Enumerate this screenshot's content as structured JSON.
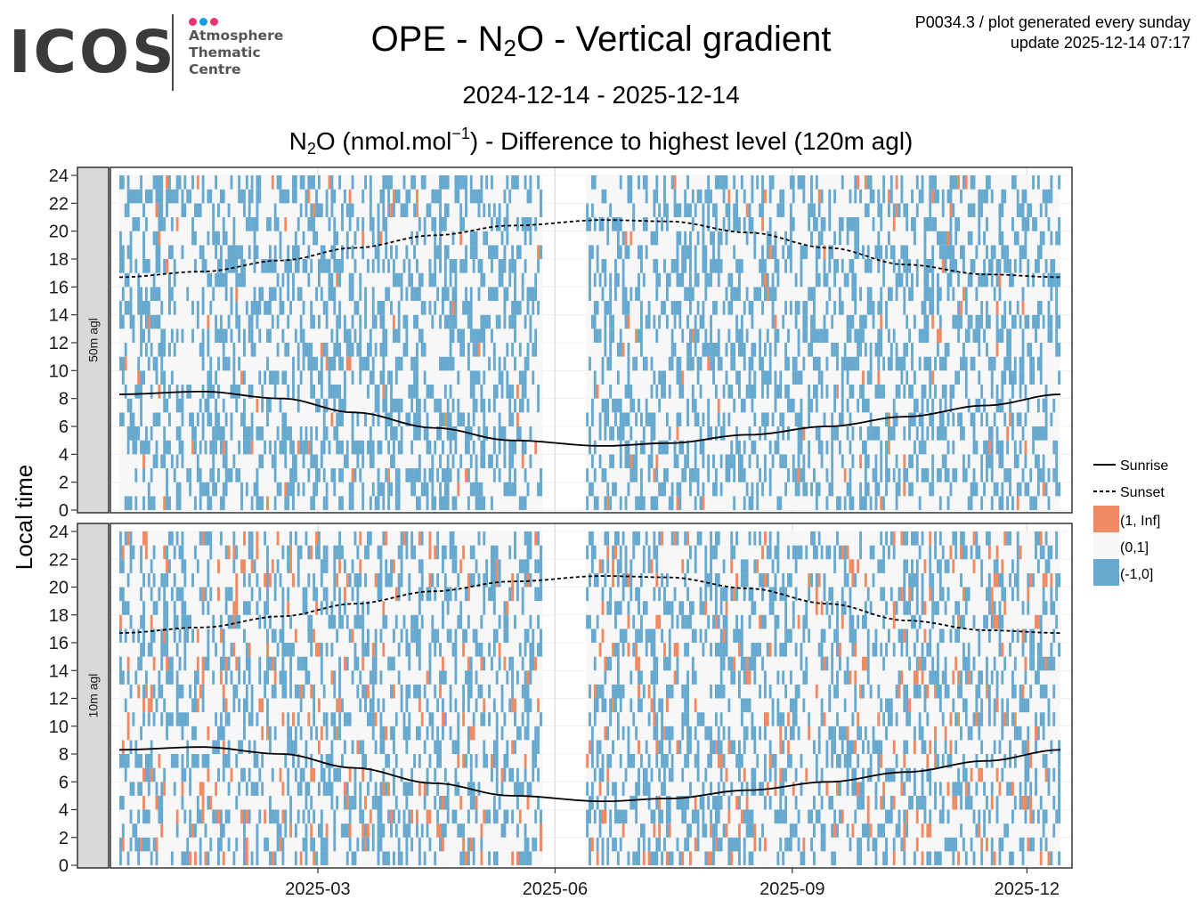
{
  "header": {
    "logo_text": "ICOS",
    "logo_subtitle": [
      "Atmosphere",
      "Thematic",
      "Centre"
    ],
    "logo_dot_colors": [
      "#e8336d",
      "#1f9be0",
      "#e8336d"
    ],
    "title_pre": "OPE - N",
    "title_sub": "2",
    "title_post": "O - Vertical gradient",
    "info_line1": "P0034.3 / plot generated every sunday",
    "info_line2": "update  2025-12-14 07:17",
    "date_range": "2024-12-14 - 2025-12-14",
    "subtitle_pre": "N",
    "subtitle_sub": "2",
    "subtitle_mid": "O (nmol.mol",
    "subtitle_sup": "−1",
    "subtitle_post": ") - Difference to highest level (120m agl)"
  },
  "chart_data": {
    "type": "heatmap",
    "xlabel": "",
    "ylabel": "Local time",
    "x_range": [
      "2024-12-14",
      "2025-12-14"
    ],
    "x_ticks": [
      "2025-03",
      "2025-06",
      "2025-09",
      "2025-12"
    ],
    "y_range": [
      0,
      24
    ],
    "y_ticks": [
      0,
      2,
      4,
      6,
      8,
      10,
      12,
      14,
      16,
      18,
      20,
      22,
      24
    ],
    "panels": [
      {
        "label": "50m agl",
        "orange_rate": 0.012,
        "blue_rate": 0.36
      },
      {
        "label": "10m agl",
        "orange_rate": 0.05,
        "blue_rate": 0.3
      }
    ],
    "data_gap": [
      "2025-05-27",
      "2025-06-13"
    ],
    "sunrise": [
      {
        "month": "2024-12-14",
        "hour": 8.3
      },
      {
        "month": "2025-01-15",
        "hour": 8.5
      },
      {
        "month": "2025-02-15",
        "hour": 8.0
      },
      {
        "month": "2025-03-15",
        "hour": 7.0
      },
      {
        "month": "2025-04-15",
        "hour": 5.9
      },
      {
        "month": "2025-05-15",
        "hour": 5.0
      },
      {
        "month": "2025-06-20",
        "hour": 4.6
      },
      {
        "month": "2025-07-15",
        "hour": 4.8
      },
      {
        "month": "2025-08-15",
        "hour": 5.4
      },
      {
        "month": "2025-09-15",
        "hour": 6.0
      },
      {
        "month": "2025-10-15",
        "hour": 6.7
      },
      {
        "month": "2025-11-15",
        "hour": 7.5
      },
      {
        "month": "2025-12-14",
        "hour": 8.3
      }
    ],
    "sunset": [
      {
        "month": "2024-12-14",
        "hour": 16.7
      },
      {
        "month": "2025-01-15",
        "hour": 17.1
      },
      {
        "month": "2025-02-15",
        "hour": 17.9
      },
      {
        "month": "2025-03-15",
        "hour": 18.8
      },
      {
        "month": "2025-04-15",
        "hour": 19.7
      },
      {
        "month": "2025-05-15",
        "hour": 20.4
      },
      {
        "month": "2025-06-20",
        "hour": 20.8
      },
      {
        "month": "2025-07-15",
        "hour": 20.7
      },
      {
        "month": "2025-08-15",
        "hour": 19.9
      },
      {
        "month": "2025-09-15",
        "hour": 18.8
      },
      {
        "month": "2025-10-15",
        "hour": 17.6
      },
      {
        "month": "2025-11-15",
        "hour": 16.9
      },
      {
        "month": "2025-12-14",
        "hour": 16.7
      }
    ],
    "legend": [
      {
        "label": "Sunrise",
        "kind": "line",
        "dash": false
      },
      {
        "label": "Sunset",
        "kind": "line",
        "dash": true
      },
      {
        "label": "(1, Inf]",
        "kind": "fill",
        "color": "#ef8a62"
      },
      {
        "label": "(0,1]",
        "kind": "fill",
        "color": "#f7f7f7"
      },
      {
        "label": "(-1,0]",
        "kind": "fill",
        "color": "#67a9cf"
      }
    ],
    "legend_position": "right",
    "grid": true
  }
}
